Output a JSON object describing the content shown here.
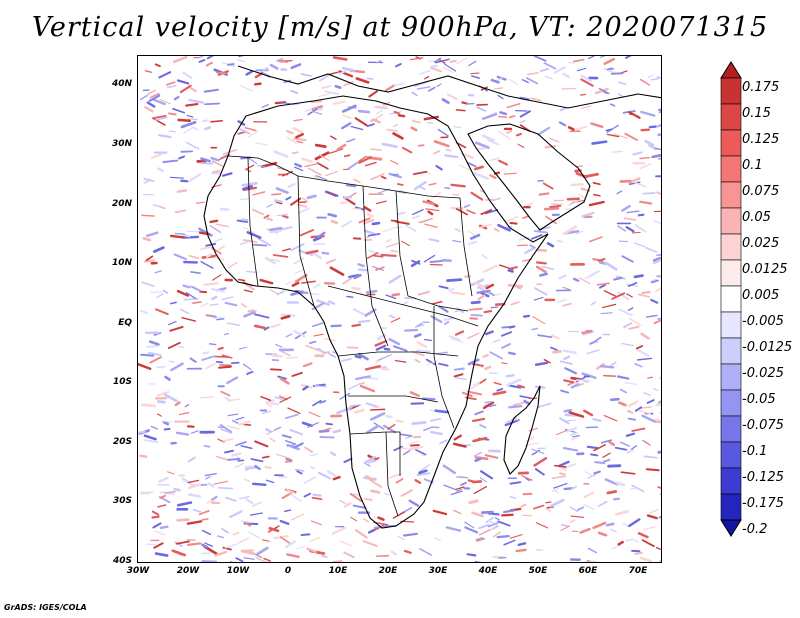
{
  "title": "Vertical velocity [m/s] at 900hPa, VT: 2020071315",
  "credit": "GrADS: IGES/COLA",
  "map": {
    "variable": "Vertical velocity",
    "units": "m/s",
    "level": "900hPa",
    "valid_time": "2020071315",
    "lon_range": [
      -30,
      75
    ],
    "lat_range": [
      -40,
      45
    ],
    "lat_ticks": [
      "40N",
      "30N",
      "20N",
      "10N",
      "EQ",
      "10S",
      "20S",
      "30S",
      "40S"
    ],
    "lon_ticks": [
      "30W",
      "20W",
      "10W",
      "0",
      "10E",
      "20E",
      "30E",
      "40E",
      "50E",
      "60E",
      "70E"
    ]
  },
  "colorbar": {
    "labels": [
      "0.175",
      "0.15",
      "0.125",
      "0.1",
      "0.075",
      "0.05",
      "0.025",
      "0.0125",
      "0.005",
      "-0.005",
      "-0.0125",
      "-0.025",
      "-0.05",
      "-0.075",
      "-0.1",
      "-0.125",
      "-0.175",
      "-0.2"
    ],
    "colors": [
      "#b22020",
      "#c83232",
      "#dc4646",
      "#ec5a5a",
      "#f47676",
      "#f89494",
      "#fab4b4",
      "#fcd2d2",
      "#feecec",
      "#ffffff",
      "#e6e6fe",
      "#cecefc",
      "#b0b0f8",
      "#9494f2",
      "#7676ea",
      "#5858e0",
      "#3c3cd2",
      "#2424be",
      "#1414a8"
    ]
  }
}
